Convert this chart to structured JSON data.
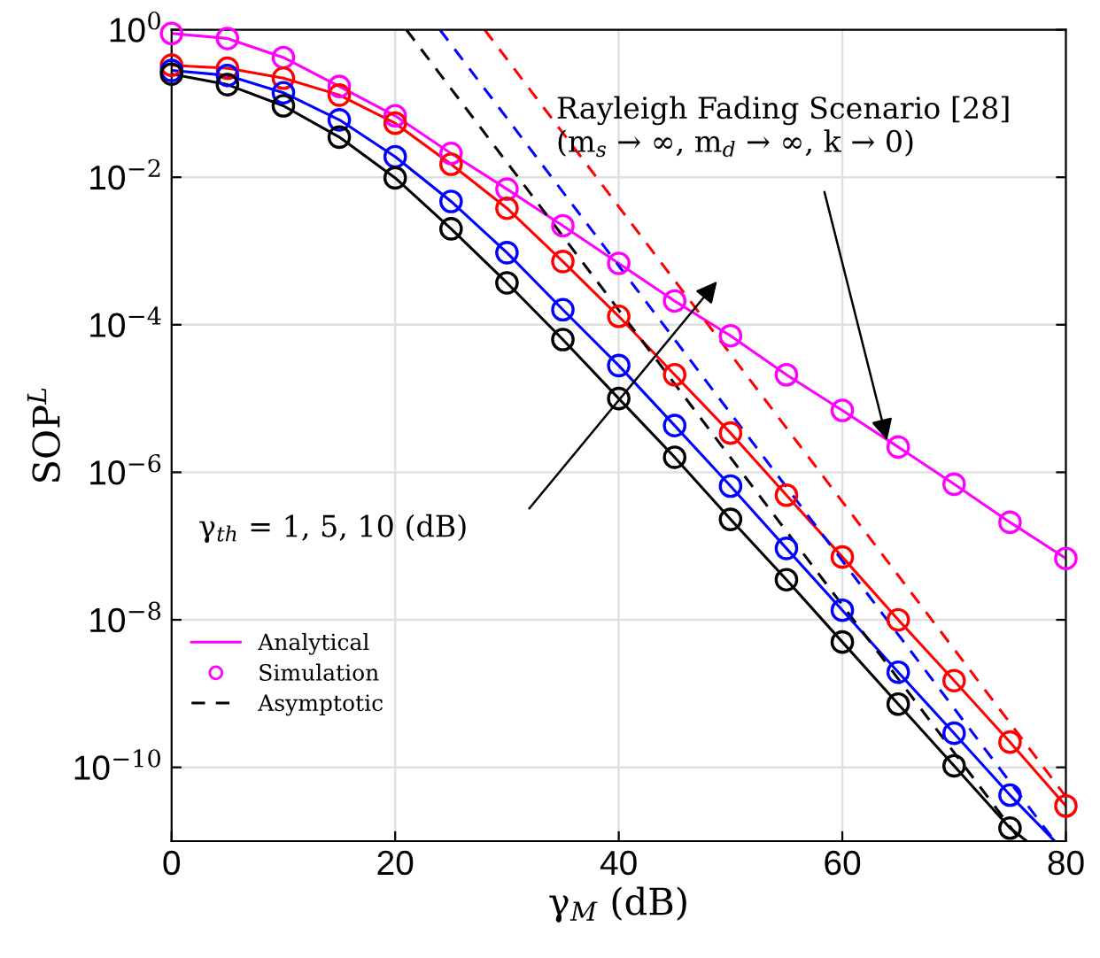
{
  "chart_data": {
    "type": "line",
    "xlabel": "γ$_{M}$ (dB)",
    "ylabel": "SOP$^{L}$",
    "log": "y",
    "grid": true,
    "legend": "bottom left",
    "xlim": [
      0,
      80
    ],
    "xticks": [
      0,
      20,
      40,
      60,
      80
    ],
    "ylim": [
      1e-11,
      1
    ],
    "yticks": [
      {
        "value": 1e-10,
        "label": "10$^{−10}$"
      },
      {
        "value": 1e-08,
        "label": "10$^{−8}$"
      },
      {
        "value": 1e-06,
        "label": "10$^{−6}$"
      },
      {
        "value": 0.0001,
        "label": "10$^{−4}$"
      },
      {
        "value": 0.01,
        "label": "10$^{−2}$"
      },
      {
        "value": 1,
        "label": "10$^{0}$"
      }
    ],
    "series": [
      {
        "name": "Analytical",
        "type": "line",
        "color": "#ff00ff",
        "line_style": "solid",
        "marker": "none",
        "x": [
          0,
          5,
          10,
          15,
          20,
          25,
          30,
          35,
          40,
          45,
          50,
          55,
          60,
          65,
          70,
          75,
          80
        ],
        "values": [
          0.89,
          0.76,
          0.42,
          0.17,
          0.068,
          0.021,
          0.0069,
          0.0022,
          0.00068,
          0.00021,
          7.1e-05,
          2.1e-05,
          6.9e-06,
          2.2e-06,
          6.9e-07,
          2.1e-07,
          6.8e-08
        ]
      },
      {
        "name": "Simulation",
        "type": "scatter",
        "color": "#ff00ff",
        "marker": "circle",
        "x": [
          0,
          5,
          10,
          15,
          20,
          25,
          30,
          35,
          40,
          45,
          50,
          55,
          60,
          65,
          70,
          75,
          80
        ],
        "values": [
          0.89,
          0.76,
          0.42,
          0.17,
          0.068,
          0.021,
          0.0069,
          0.0022,
          0.00068,
          0.00021,
          7.1e-05,
          2.1e-05,
          6.9e-06,
          2.2e-06,
          6.9e-07,
          2.1e-07,
          6.8e-08
        ]
      },
      {
        "type": "line",
        "color": "#ff0000",
        "line_style": "solid",
        "marker": "none",
        "x": [
          0,
          5,
          10,
          15,
          20,
          25,
          30,
          35,
          40,
          45,
          50,
          55,
          60,
          65,
          70,
          75,
          80
        ],
        "values": [
          0.33,
          0.3,
          0.22,
          0.13,
          0.054,
          0.015,
          0.0038,
          0.00072,
          0.00013,
          2.1e-05,
          3.4e-06,
          4.9e-07,
          7.1e-08,
          1e-08,
          1.5e-09,
          2.2e-10,
          3e-11
        ]
      },
      {
        "type": "scatter",
        "color": "#ff0000",
        "marker": "circle",
        "x": [
          0,
          5,
          10,
          15,
          20,
          25,
          30,
          35,
          40,
          45,
          50,
          55,
          60,
          65,
          70,
          75,
          80
        ],
        "values": [
          0.33,
          0.3,
          0.22,
          0.13,
          0.054,
          0.015,
          0.0038,
          0.00072,
          0.00013,
          2.1e-05,
          3.4e-06,
          4.9e-07,
          7.1e-08,
          1e-08,
          1.5e-09,
          2.2e-10,
          3e-11
        ]
      },
      {
        "type": "line",
        "color": "#0000ff",
        "line_style": "solid",
        "marker": "none",
        "x": [
          0,
          5,
          10,
          15,
          20,
          25,
          30,
          35,
          40,
          45,
          50,
          55,
          60,
          65,
          70,
          75,
          79
        ],
        "values": [
          0.28,
          0.24,
          0.14,
          0.06,
          0.019,
          0.0047,
          0.00095,
          0.00016,
          2.8e-05,
          4.3e-06,
          6.5e-07,
          9.3e-08,
          1.35e-08,
          1.95e-09,
          2.9e-10,
          4.2e-11,
          1e-11
        ]
      },
      {
        "type": "scatter",
        "color": "#0000ff",
        "marker": "circle",
        "x": [
          0,
          5,
          10,
          15,
          20,
          25,
          30,
          35,
          40,
          45,
          50,
          55,
          60,
          65,
          70,
          75
        ],
        "values": [
          0.28,
          0.24,
          0.14,
          0.06,
          0.019,
          0.0047,
          0.00095,
          0.00016,
          2.8e-05,
          4.3e-06,
          6.5e-07,
          9.3e-08,
          1.35e-08,
          1.95e-09,
          2.9e-10,
          4.2e-11
        ]
      },
      {
        "type": "line",
        "color": "#000000",
        "line_style": "solid",
        "marker": "none",
        "x": [
          0,
          5,
          10,
          15,
          20,
          25,
          30,
          35,
          40,
          45,
          50,
          55,
          60,
          65,
          70,
          75,
          76.5
        ],
        "values": [
          0.25,
          0.18,
          0.093,
          0.035,
          0.0098,
          0.002,
          0.00037,
          6.3e-05,
          1e-05,
          1.6e-06,
          2.3e-07,
          3.5e-08,
          5e-09,
          7.2e-10,
          1.05e-10,
          1.5e-11,
          1e-11
        ]
      },
      {
        "type": "scatter",
        "color": "#000000",
        "marker": "circle",
        "x": [
          0,
          5,
          10,
          15,
          20,
          25,
          30,
          35,
          40,
          45,
          50,
          55,
          60,
          65,
          70,
          75
        ],
        "values": [
          0.25,
          0.18,
          0.093,
          0.035,
          0.0098,
          0.002,
          0.00037,
          6.3e-05,
          1e-05,
          1.6e-06,
          2.3e-07,
          3.5e-08,
          5e-09,
          7.2e-10,
          1.05e-10,
          1.5e-11
        ]
      },
      {
        "name": "Asymptotic",
        "color": "#000000",
        "line_style": "dashed",
        "marker": "none",
        "x": [
          21,
          76
        ],
        "values": [
          1,
          1e-11
        ]
      },
      {
        "type": "line",
        "color": "#0000ff",
        "line_style": "dashed",
        "marker": "none",
        "x": [
          24,
          79
        ],
        "values": [
          1,
          1e-11
        ]
      },
      {
        "type": "line",
        "color": "#ff0000",
        "line_style": "dashed",
        "marker": "none",
        "x": [
          28,
          80
        ],
        "values": [
          1,
          4e-11
        ]
      }
    ],
    "annotations": [
      {
        "text": "Rayleigh Fading Scenario [28]\n(m$_{s}$ → ∞, m$_{d}$ → ∞, k → 0)",
        "x": 64,
        "y": 2.7e-06
      },
      "γ$_{th}$ = 1, 5, 10 (dB)"
    ]
  }
}
